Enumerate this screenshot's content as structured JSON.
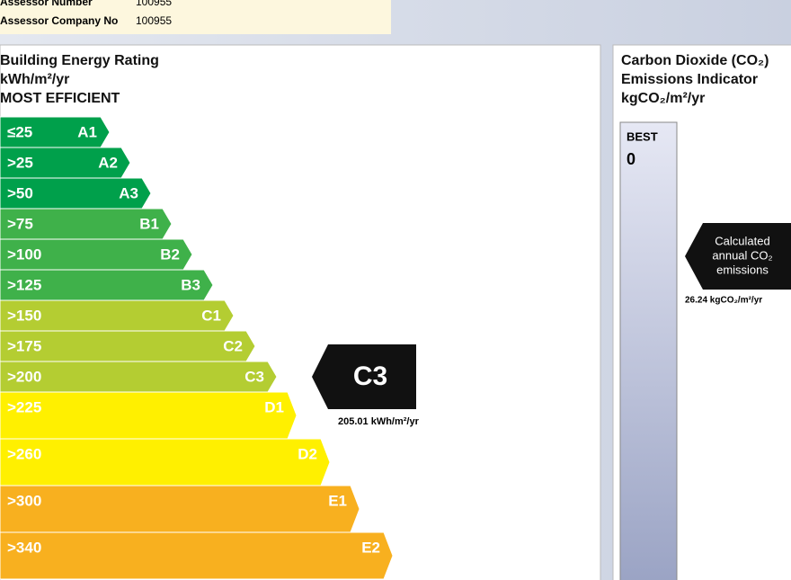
{
  "assessor": {
    "number_label": "Assessor Number",
    "number": "100955",
    "company_label": "Assessor Company No",
    "company": "100955"
  },
  "ber": {
    "title": "Building Energy Rating",
    "unit": "kWh/m²/yr",
    "subtitle": "MOST EFFICIENT",
    "bands": [
      {
        "range": "≤25",
        "grade": "A1"
      },
      {
        "range": ">25",
        "grade": "A2"
      },
      {
        "range": ">50",
        "grade": "A3"
      },
      {
        "range": ">75",
        "grade": "B1"
      },
      {
        "range": ">100",
        "grade": "B2"
      },
      {
        "range": ">125",
        "grade": "B3"
      },
      {
        "range": ">150",
        "grade": "C1"
      },
      {
        "range": ">175",
        "grade": "C2"
      },
      {
        "range": ">200",
        "grade": "C3"
      },
      {
        "range": ">225",
        "grade": "D1"
      },
      {
        "range": ">260",
        "grade": "D2"
      },
      {
        "range": ">300",
        "grade": "E1"
      },
      {
        "range": ">340",
        "grade": "E2"
      }
    ],
    "rating": "C3",
    "rating_value": "205.01 kWh/m²/yr"
  },
  "co2": {
    "title_1": "Carbon Dioxide (CO₂)",
    "title_2": "Emissions Indicator",
    "unit": "kgCO₂/m²/yr",
    "best_label": "BEST",
    "best_value": "0",
    "arrow_1": "Calculated",
    "arrow_2": "annual CO₂",
    "arrow_3": "emissions",
    "value": "26.24 kgCO₂/m²/yr"
  }
}
